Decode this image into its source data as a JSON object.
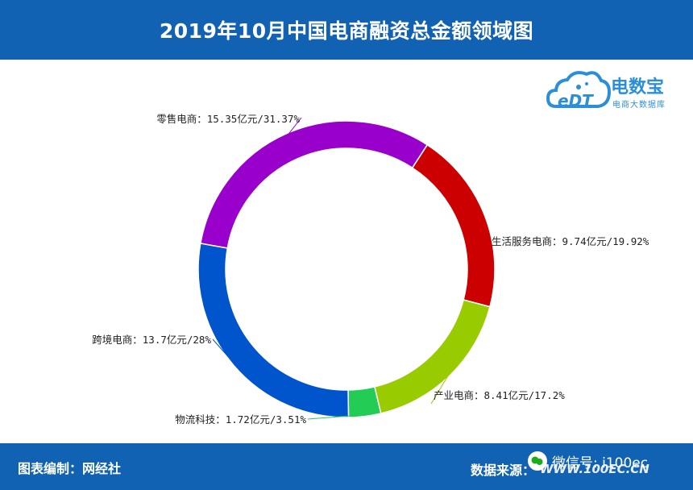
{
  "header": {
    "title": "2019年10月中国电商融资总金额领域图"
  },
  "logo": {
    "brand": "电数宝",
    "sub": "电商大数据库",
    "mark_text": "eDT"
  },
  "footer": {
    "compiler": "图表编制：网经社",
    "source_label": "数据来源：",
    "source_value": "WWW.100EC.CN",
    "wechat": "微信号: i100ec"
  },
  "colors": {
    "bar": "#1262b4",
    "retail": "#9900cc",
    "life": "#cc0000",
    "industry": "#99cc00",
    "logistics": "#22cc55",
    "crossborder": "#0055cc"
  },
  "chart_data": {
    "type": "pie",
    "style": "donut",
    "title": "2019年10月中国电商融资总金额领域图",
    "unit": "亿元",
    "slices": [
      {
        "name": "生活服务电商",
        "value": 9.74,
        "percent": 19.92,
        "label": "生活服务电商：9.74亿元/19.92%",
        "color": "#cc0000"
      },
      {
        "name": "产业电商",
        "value": 8.41,
        "percent": 17.2,
        "label": "产业电商：8.41亿元/17.2%",
        "color": "#99cc00"
      },
      {
        "name": "物流科技",
        "value": 1.72,
        "percent": 3.51,
        "label": "物流科技：1.72亿元/3.51%",
        "color": "#22cc55"
      },
      {
        "name": "跨境电商",
        "value": 13.7,
        "percent": 28,
        "label": "跨境电商：13.7亿元/28%",
        "color": "#0055cc"
      },
      {
        "name": "零售电商",
        "value": 15.35,
        "percent": 31.37,
        "label": "零售电商：15.35亿元/31.37%",
        "color": "#9900cc"
      }
    ]
  }
}
